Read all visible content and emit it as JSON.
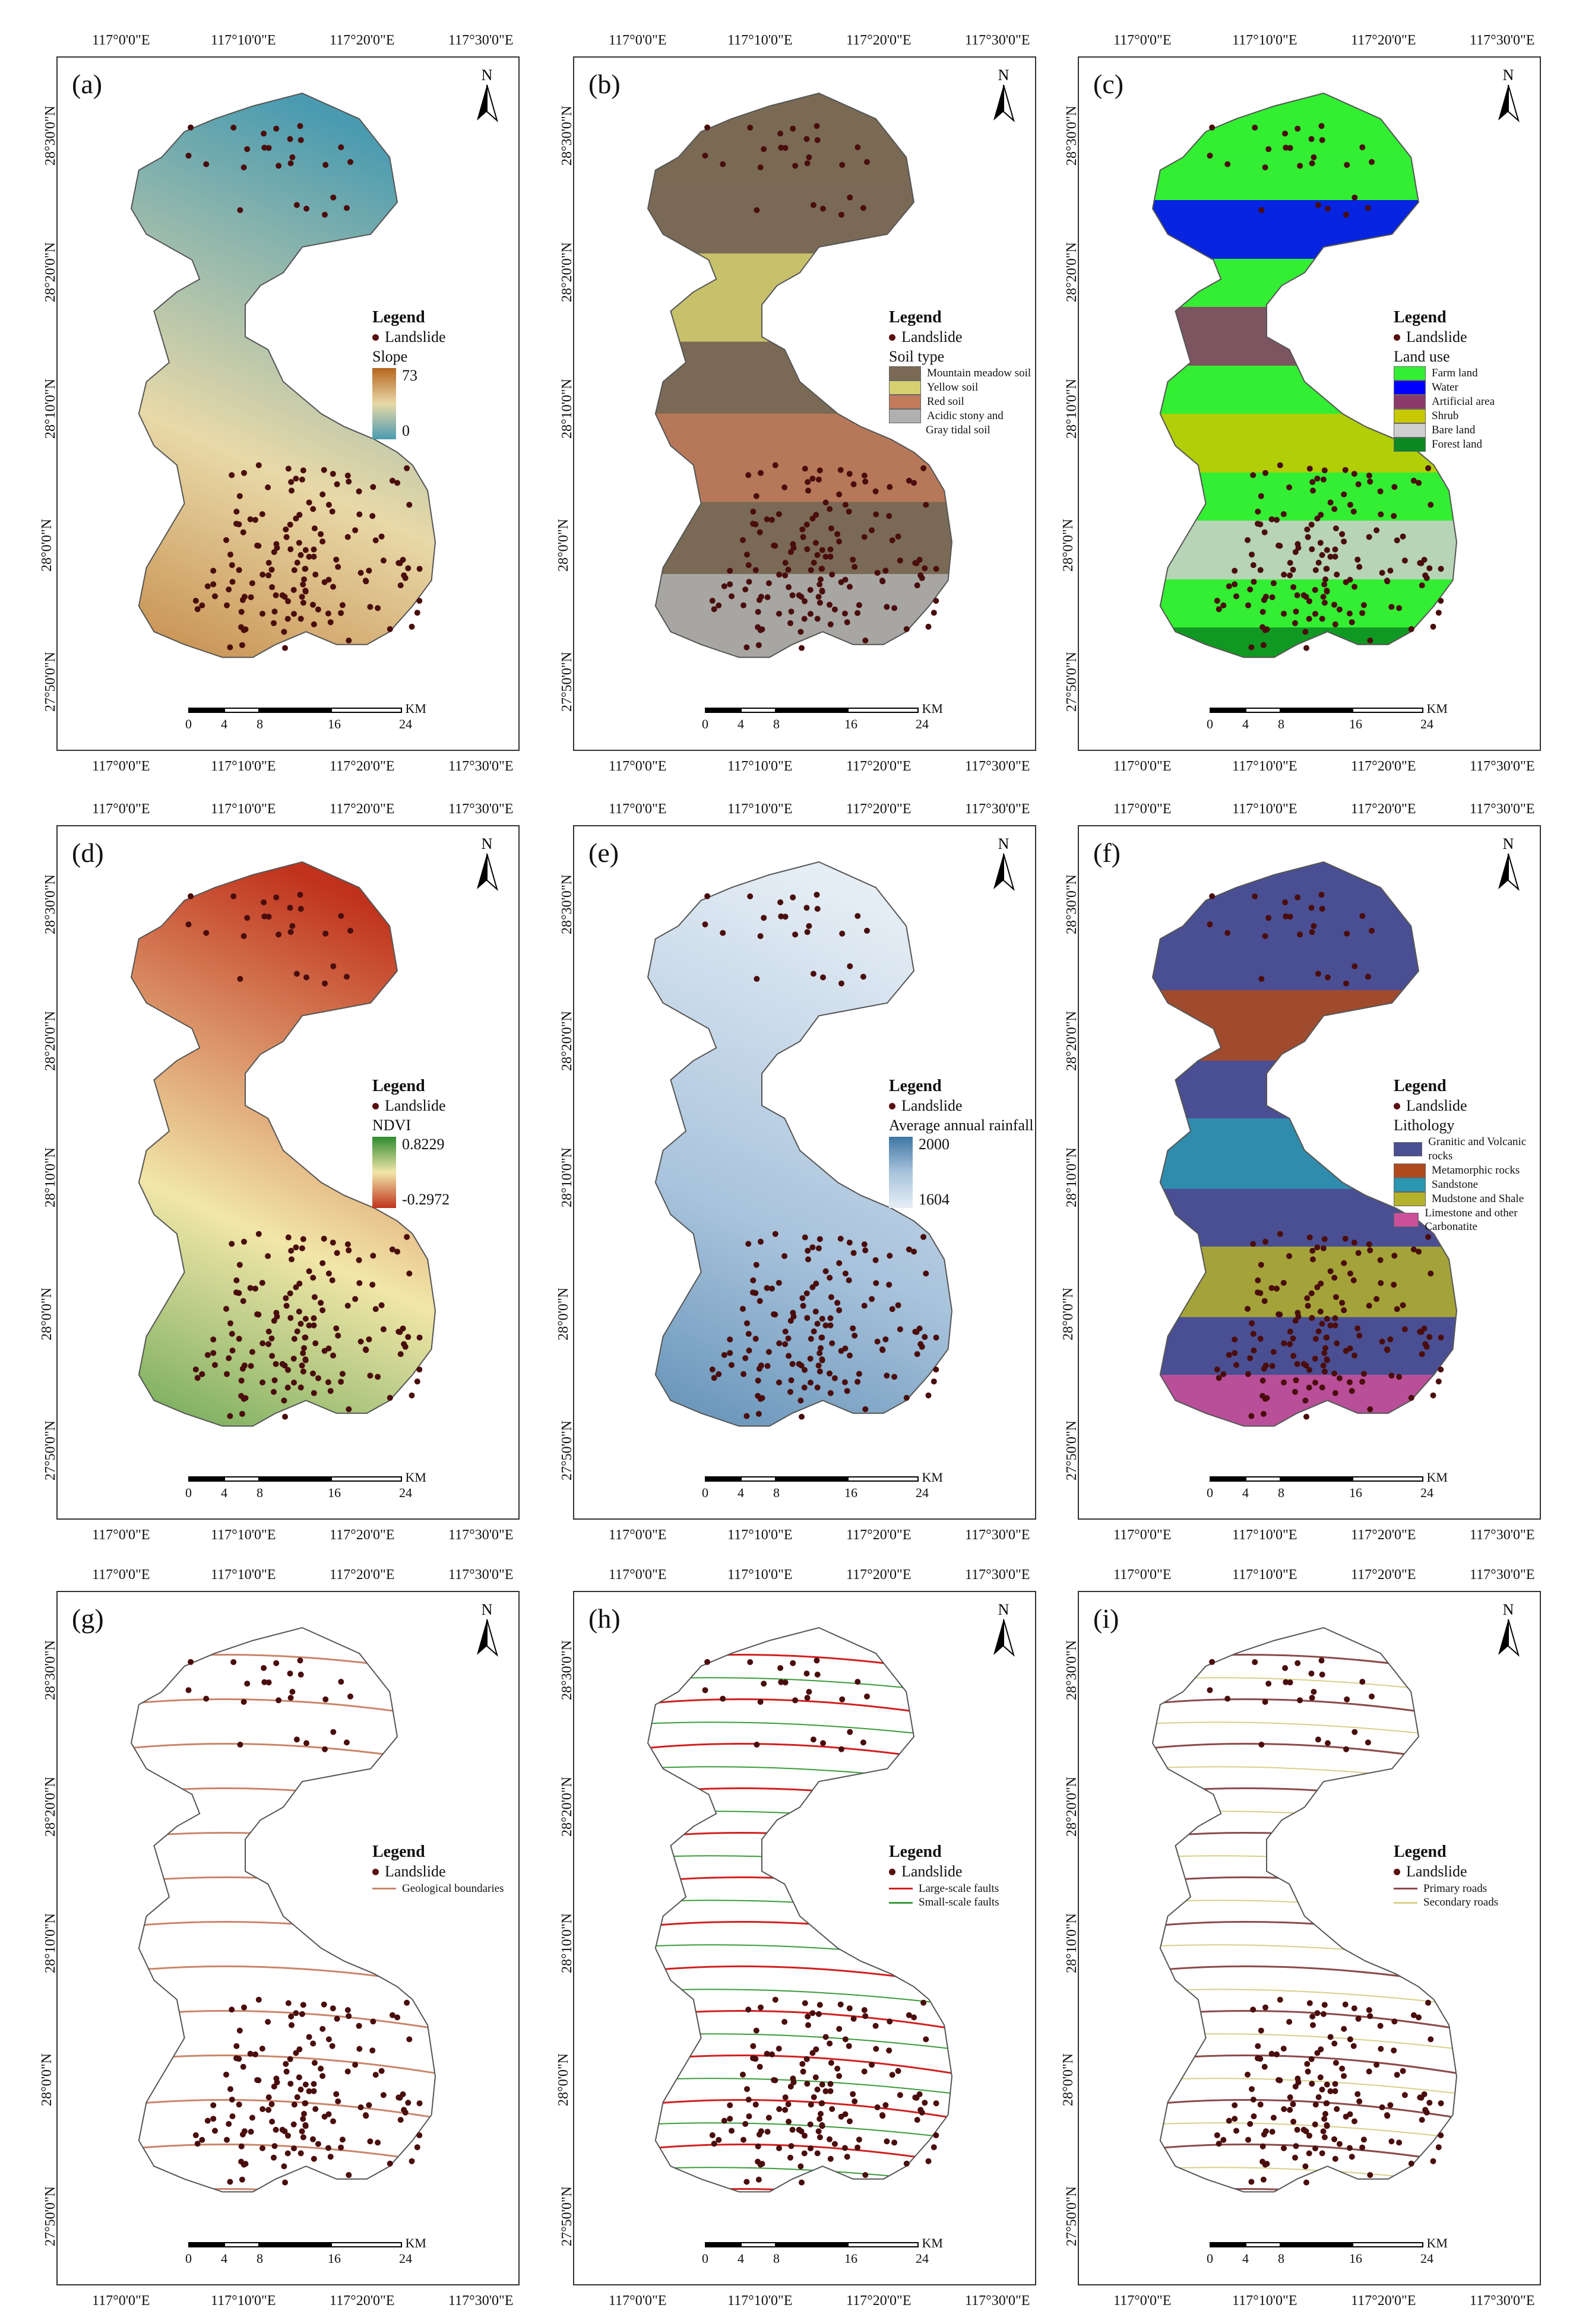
{
  "coords": {
    "lon": [
      "117°0'0\"E",
      "117°10'0\"E",
      "117°20'0\"E",
      "117°30'0\"E"
    ],
    "lat": [
      "28°30'0\"N",
      "28°20'0\"N",
      "28°10'0\"N",
      "28°0'0\"N",
      "27°50'0\"N"
    ]
  },
  "scalebar": {
    "labels": [
      "0",
      "4",
      "8",
      "16",
      "24"
    ],
    "unit": "KM"
  },
  "north_label": "N",
  "landslide_label": "Landslide",
  "legend_title": "Legend",
  "panels": [
    {
      "letter": "(a)",
      "factor": "Slope",
      "max": "73",
      "min": "0",
      "colors": [
        "#b5651d",
        "#e8d9a8",
        "#4a9bb0"
      ]
    },
    {
      "letter": "(b)",
      "factor": "Soil type",
      "classes": [
        {
          "label": "Mountain meadow soil",
          "color": "#7a6a55"
        },
        {
          "label": "Yellow soil",
          "color": "#d6d070"
        },
        {
          "label": "Red soil",
          "color": "#c27a5c"
        },
        {
          "label": "Acidic stony and",
          "label2": "Gray tidal soil",
          "color": "#b0b0b0"
        }
      ]
    },
    {
      "letter": "(c)",
      "factor": "Land use",
      "classes": [
        {
          "label": "Farm land",
          "color": "#33ee33"
        },
        {
          "label": "Water",
          "color": "#0000ff"
        },
        {
          "label": "Artificial area",
          "color": "#8b3a6a"
        },
        {
          "label": "Shrub",
          "color": "#c8c800"
        },
        {
          "label": "Bare land",
          "color": "#cfcfcf"
        },
        {
          "label": "Forest land",
          "color": "#0a8a20"
        }
      ]
    },
    {
      "letter": "(d)",
      "factor": "NDVI",
      "max": "0.8229",
      "min": "-0.2972",
      "colors": [
        "#2f8b2f",
        "#f1e6a8",
        "#c0321c"
      ]
    },
    {
      "letter": "(e)",
      "factor": "Average annual rainfall",
      "max": "2000",
      "min": "1604",
      "colors": [
        "#3f77a3",
        "#a8c3dc",
        "#e6eef5"
      ]
    },
    {
      "letter": "(f)",
      "factor": "Lithology",
      "classes": [
        {
          "label": "Granitic and Volcanic rocks",
          "color": "#4a4f93"
        },
        {
          "label": "Metamorphic rocks",
          "color": "#b04a1c"
        },
        {
          "label": "Sandstone",
          "color": "#2b96b0"
        },
        {
          "label": "Mudstone and Shale",
          "color": "#b3b22a"
        },
        {
          "label": "Limestone and other Carbonatite",
          "color": "#cc4f9a"
        }
      ]
    },
    {
      "letter": "(g)",
      "lines": [
        {
          "label": "Geological boundaries",
          "color": "#c9866b"
        }
      ]
    },
    {
      "letter": "(h)",
      "lines": [
        {
          "label": "Large-scale faults",
          "color": "#d02020"
        },
        {
          "label": "Small-scale faults",
          "color": "#3a9a3a"
        }
      ]
    },
    {
      "letter": "(i)",
      "lines": [
        {
          "label": "Primary roads",
          "color": "#8b4a4a"
        },
        {
          "label": "Secondary roads",
          "color": "#d8d08a"
        }
      ]
    }
  ]
}
